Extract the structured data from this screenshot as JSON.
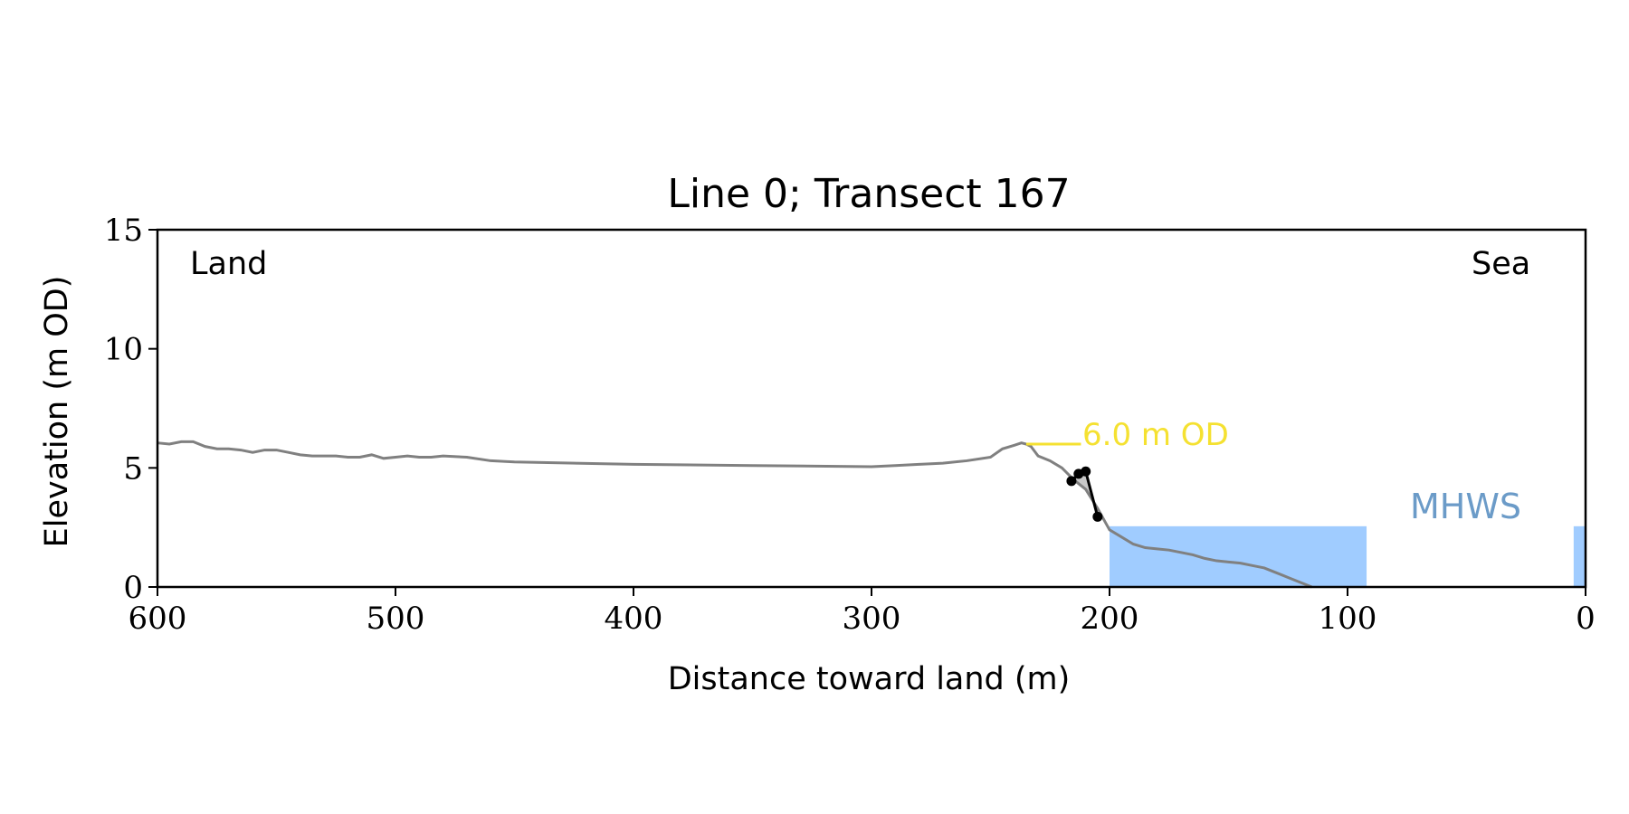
{
  "chart_data": {
    "type": "line",
    "title": "Line 0; Transect 167",
    "xlabel": "Distance toward land (m)",
    "ylabel": "Elevation (m OD)",
    "xlim": [
      600,
      0
    ],
    "ylim": [
      0,
      15
    ],
    "x_reversed": true,
    "x_ticks": [
      {
        "value": 600,
        "label": "600"
      },
      {
        "value": 500,
        "label": "500"
      },
      {
        "value": 400,
        "label": "400"
      },
      {
        "value": 300,
        "label": "300"
      },
      {
        "value": 200,
        "label": "200"
      },
      {
        "value": 100,
        "label": "100"
      },
      {
        "value": 0,
        "label": "0"
      }
    ],
    "y_ticks": [
      {
        "value": 0,
        "label": "0"
      },
      {
        "value": 5,
        "label": "5"
      },
      {
        "value": 10,
        "label": "10"
      },
      {
        "value": 15,
        "label": "15"
      }
    ],
    "grid": false,
    "corner_labels": {
      "left": "Land",
      "right": "Sea"
    },
    "colors": {
      "profile": "#808080",
      "cliff": "#000000",
      "cliff_fill": "#c8c8c8",
      "reference_line": "#f5e131",
      "mhws": "#a0ccff",
      "mhws_text": "#6b9bc8"
    },
    "profile": {
      "x": [
        600,
        595,
        590,
        585,
        580,
        575,
        570,
        565,
        560,
        555,
        550,
        545,
        540,
        535,
        530,
        525,
        520,
        515,
        510,
        505,
        500,
        495,
        490,
        485,
        480,
        470,
        460,
        450,
        400,
        350,
        300,
        290,
        280,
        270,
        260,
        250,
        245,
        240,
        237,
        235,
        233,
        230,
        225,
        220,
        215,
        210,
        205,
        200,
        195,
        190,
        185,
        180,
        175,
        170,
        165,
        160,
        155,
        150,
        145,
        140,
        135,
        130,
        125,
        120,
        115
      ],
      "y": [
        6.05,
        6.0,
        6.1,
        6.1,
        5.9,
        5.8,
        5.8,
        5.75,
        5.65,
        5.75,
        5.75,
        5.65,
        5.55,
        5.5,
        5.5,
        5.5,
        5.45,
        5.45,
        5.55,
        5.4,
        5.45,
        5.5,
        5.45,
        5.45,
        5.5,
        5.45,
        5.3,
        5.25,
        5.15,
        5.1,
        5.05,
        5.1,
        5.15,
        5.2,
        5.3,
        5.45,
        5.8,
        5.95,
        6.05,
        6.0,
        5.9,
        5.5,
        5.3,
        5.0,
        4.5,
        4.1,
        3.3,
        2.4,
        2.1,
        1.8,
        1.65,
        1.6,
        1.55,
        1.45,
        1.35,
        1.2,
        1.1,
        1.05,
        1.0,
        0.9,
        0.8,
        0.6,
        0.4,
        0.2,
        0.0
      ]
    },
    "cliff": {
      "x": [
        216,
        213,
        210,
        205
      ],
      "y": [
        4.45,
        4.75,
        4.85,
        2.95
      ]
    },
    "reference_line": {
      "label": "6.0 m OD",
      "y": 6.0,
      "x_start": 235,
      "x_end": 212
    },
    "mhws": {
      "label": "MHWS",
      "level": 2.55,
      "regions": [
        {
          "x_from": 200,
          "x_to": 92
        },
        {
          "x_from": 5,
          "x_to": 0
        }
      ]
    }
  }
}
